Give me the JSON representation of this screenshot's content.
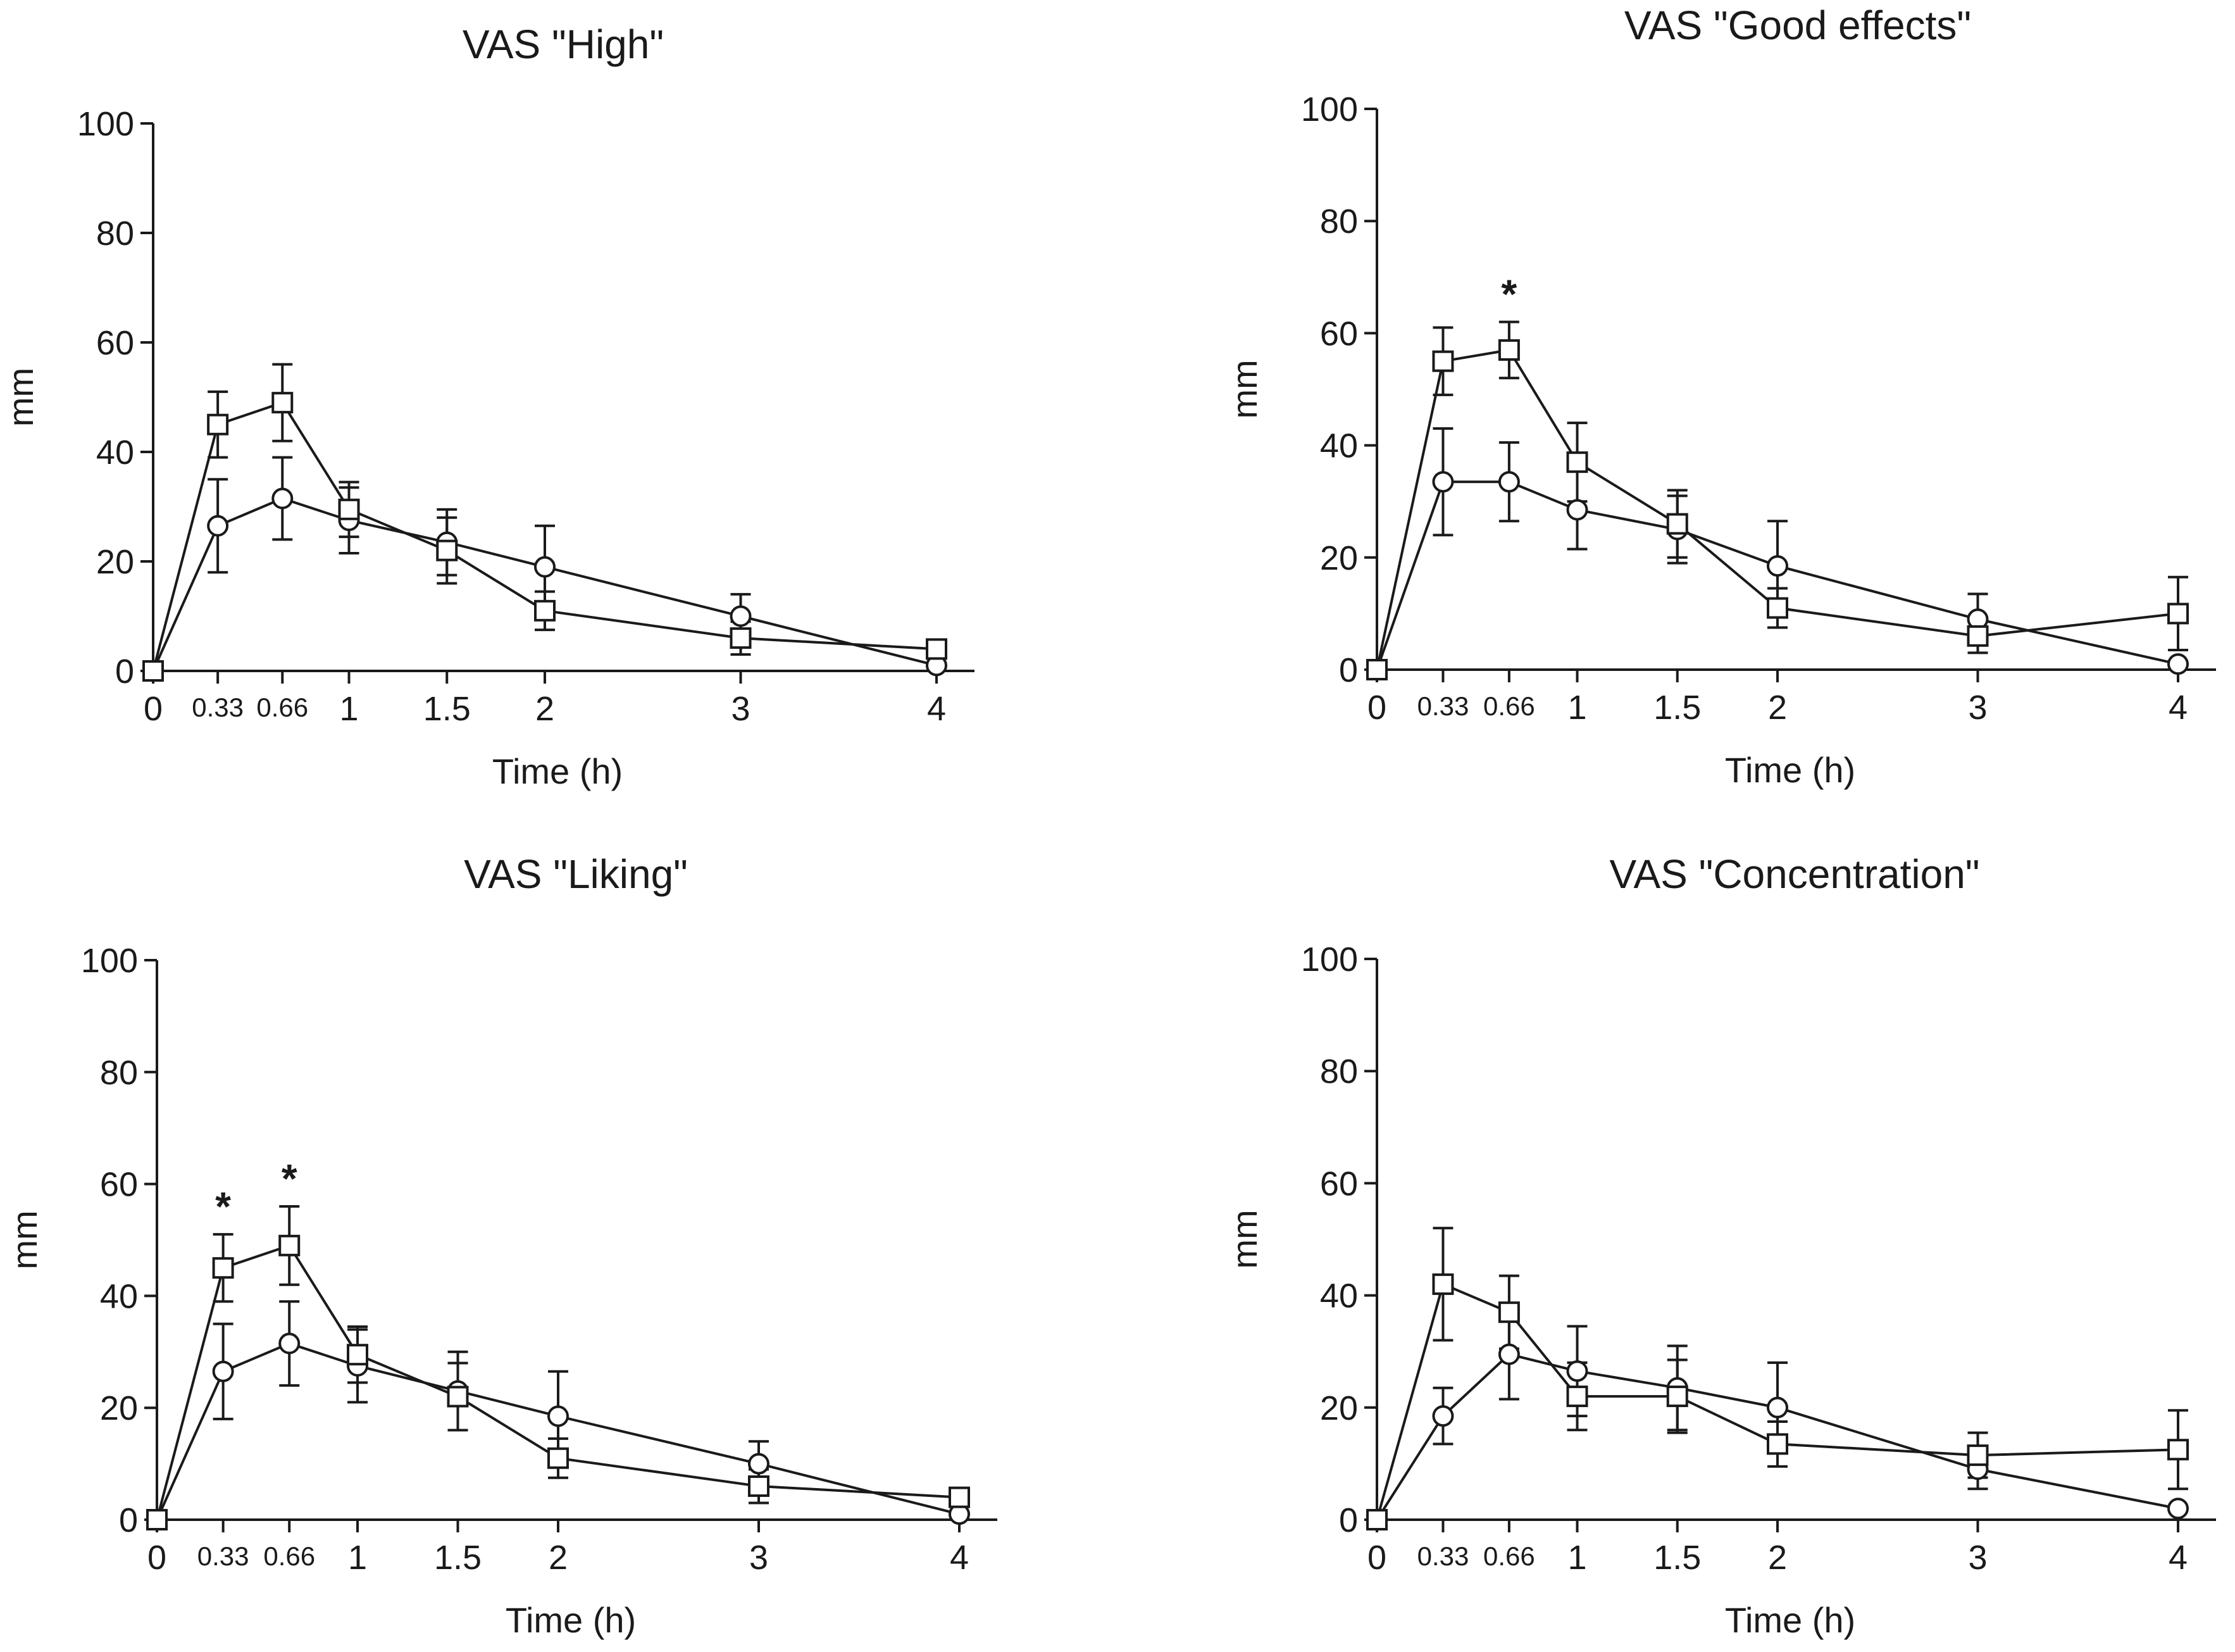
{
  "chart_data": [
    {
      "type": "line",
      "title": "VAS \"High\"",
      "xlabel": "Time (h)",
      "ylabel": "mm",
      "ylim": [
        0,
        100
      ],
      "yticks": [
        "0",
        "20",
        "40",
        "60",
        "80",
        "100"
      ],
      "xticks": [
        "0",
        "0.33",
        "0.66",
        "1",
        "1.5",
        "2",
        "3",
        "4"
      ],
      "x": [
        0,
        0.33,
        0.66,
        1,
        1.5,
        2,
        3,
        4
      ],
      "series": [
        {
          "name": "circle",
          "marker": "circle",
          "values": [
            0,
            26.5,
            31.5,
            27.5,
            23.5,
            19,
            10,
            1
          ],
          "err": [
            0,
            8.5,
            7.5,
            6,
            6,
            7.5,
            4,
            0
          ]
        },
        {
          "name": "square",
          "marker": "square",
          "values": [
            0,
            45,
            49,
            29.5,
            22,
            11,
            6,
            4
          ],
          "err": [
            0,
            6,
            7,
            5,
            6,
            3.5,
            3,
            0
          ]
        }
      ],
      "significance": []
    },
    {
      "type": "line",
      "title": "VAS \"Good effects\"",
      "xlabel": "Time (h)",
      "ylabel": "mm",
      "ylim": [
        0,
        100
      ],
      "yticks": [
        "0",
        "20",
        "40",
        "60",
        "80",
        "100"
      ],
      "xticks": [
        "0",
        "0.33",
        "0.66",
        "1",
        "1.5",
        "2",
        "3",
        "4"
      ],
      "x": [
        0,
        0.33,
        0.66,
        1,
        1.5,
        2,
        3,
        4
      ],
      "series": [
        {
          "name": "circle",
          "marker": "circle",
          "values": [
            0,
            33.5,
            33.5,
            28.5,
            25,
            18.5,
            9,
            1
          ],
          "err": [
            0,
            9.5,
            7,
            7,
            6,
            8,
            4.5,
            0
          ]
        },
        {
          "name": "square",
          "marker": "square",
          "values": [
            0,
            55,
            57,
            37,
            26,
            11,
            6,
            10
          ],
          "err": [
            0,
            6,
            5,
            7,
            6,
            3.5,
            3,
            6.5
          ]
        }
      ],
      "significance": [
        {
          "x": 0.66,
          "label": "*"
        }
      ]
    },
    {
      "type": "line",
      "title": "VAS \"Liking\"",
      "xlabel": "Time (h)",
      "ylabel": "mm",
      "ylim": [
        0,
        100
      ],
      "yticks": [
        "0",
        "20",
        "40",
        "60",
        "80",
        "100"
      ],
      "xticks": [
        "0",
        "0.33",
        "0.66",
        "1",
        "1.5",
        "2",
        "3",
        "4"
      ],
      "x": [
        0,
        0.33,
        0.66,
        1,
        1.5,
        2,
        3,
        4
      ],
      "series": [
        {
          "name": "circle",
          "marker": "circle",
          "values": [
            0,
            26.5,
            31.5,
            27.5,
            23,
            18.5,
            10,
            1
          ],
          "err": [
            0,
            8.5,
            7.5,
            6.5,
            7,
            8,
            4,
            0
          ]
        },
        {
          "name": "square",
          "marker": "square",
          "values": [
            0,
            45,
            49,
            29.5,
            22,
            11,
            6,
            4
          ],
          "err": [
            0,
            6,
            7,
            5,
            6,
            3.5,
            3,
            0
          ]
        }
      ],
      "significance": [
        {
          "x": 0.33,
          "label": "*"
        },
        {
          "x": 0.66,
          "label": "*"
        }
      ]
    },
    {
      "type": "line",
      "title": "VAS \"Concentration\"",
      "xlabel": "Time (h)",
      "ylabel": "mm",
      "ylim": [
        0,
        100
      ],
      "yticks": [
        "0",
        "20",
        "40",
        "60",
        "80",
        "100"
      ],
      "xticks": [
        "0",
        "0.33",
        "0.66",
        "1",
        "1.5",
        "2",
        "3",
        "4"
      ],
      "x": [
        0,
        0.33,
        0.66,
        1,
        1.5,
        2,
        3,
        4
      ],
      "series": [
        {
          "name": "circle",
          "marker": "circle",
          "values": [
            0,
            18.5,
            29.5,
            26.5,
            23.5,
            20,
            9,
            2
          ],
          "err": [
            0,
            5,
            8,
            8,
            7.5,
            8,
            3.5,
            0
          ]
        },
        {
          "name": "square",
          "marker": "square",
          "values": [
            0,
            42,
            37,
            22,
            22,
            13.5,
            11.5,
            12.5
          ],
          "err": [
            0,
            10,
            6.5,
            6,
            6.5,
            4,
            4,
            7
          ]
        }
      ],
      "significance": []
    }
  ]
}
